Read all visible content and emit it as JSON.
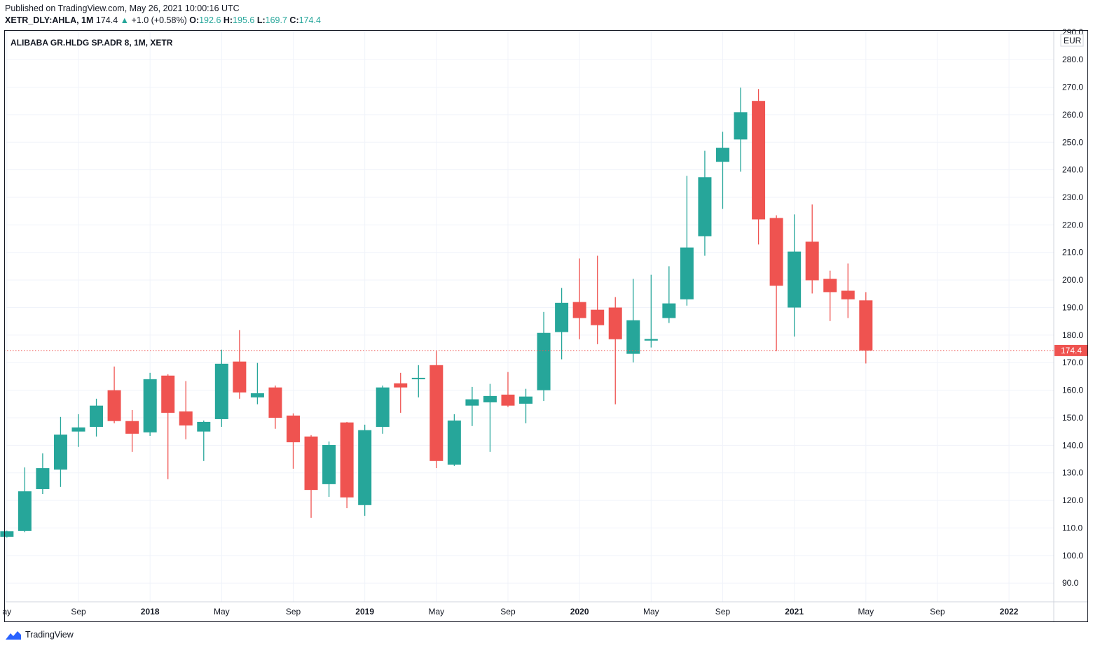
{
  "header": {
    "published": "Published on TradingView.com, May 26, 2021 10:00:16 UTC",
    "symbol": "XETR_DLY:AHLA, 1M",
    "last": "174.4",
    "change": "+1.0 (+0.58%)",
    "o_label": "O:",
    "o": "192.6",
    "h_label": "H:",
    "h": "195.6",
    "l_label": "L:",
    "l": "169.7",
    "c_label": "C:",
    "c": "174.4"
  },
  "footer": {
    "brand": "TradingView"
  },
  "colors": {
    "up": "#26a69a",
    "down": "#ef5350",
    "grid": "#f0f3fa",
    "text": "#131722"
  },
  "chart_data": {
    "type": "candlestick",
    "title": "ALIBABA GR.HLDG SP.ADR 8, 1M, XETR",
    "currency": "EUR",
    "last_price_label": "174.4",
    "last_price": 174.4,
    "ylim": [
      83.2,
      290.7
    ],
    "y_ticks": [
      90,
      100,
      110,
      120,
      130,
      140,
      150,
      160,
      170,
      180,
      190,
      200,
      210,
      220,
      230,
      240,
      250,
      260,
      270,
      280,
      290
    ],
    "x_ticks": [
      {
        "i": 0,
        "label": "ay"
      },
      {
        "i": 4,
        "label": "Sep"
      },
      {
        "i": 8,
        "label": "2018"
      },
      {
        "i": 12,
        "label": "May"
      },
      {
        "i": 16,
        "label": "Sep"
      },
      {
        "i": 20,
        "label": "2019"
      },
      {
        "i": 24,
        "label": "May"
      },
      {
        "i": 28,
        "label": "Sep"
      },
      {
        "i": 32,
        "label": "2020"
      },
      {
        "i": 36,
        "label": "May"
      },
      {
        "i": 40,
        "label": "Sep"
      },
      {
        "i": 44,
        "label": "2021"
      },
      {
        "i": 48,
        "label": "May"
      },
      {
        "i": 52,
        "label": "Sep"
      },
      {
        "i": 56,
        "label": "2022"
      }
    ],
    "x_range_months": [
      -0.15,
      58.5
    ],
    "grid": true,
    "candles": [
      {
        "d": "2017-05",
        "o": 106.8,
        "h": 109.0,
        "l": 106.5,
        "c": 108.8
      },
      {
        "d": "2017-06",
        "o": 108.9,
        "h": 132.0,
        "l": 108.5,
        "c": 123.3
      },
      {
        "d": "2017-07",
        "o": 124.1,
        "h": 137.1,
        "l": 122.3,
        "c": 131.7
      },
      {
        "d": "2017-08",
        "o": 131.2,
        "h": 150.3,
        "l": 124.9,
        "c": 143.9
      },
      {
        "d": "2017-09",
        "o": 145.0,
        "h": 151.3,
        "l": 139.4,
        "c": 146.5
      },
      {
        "d": "2017-10",
        "o": 146.7,
        "h": 156.9,
        "l": 143.2,
        "c": 154.4
      },
      {
        "d": "2017-11",
        "o": 160.0,
        "h": 168.6,
        "l": 148.0,
        "c": 148.8
      },
      {
        "d": "2017-12",
        "o": 148.8,
        "h": 152.8,
        "l": 137.6,
        "c": 144.2
      },
      {
        "d": "2018-01",
        "o": 144.7,
        "h": 166.3,
        "l": 143.4,
        "c": 164.0
      },
      {
        "d": "2018-02",
        "o": 165.3,
        "h": 165.8,
        "l": 127.7,
        "c": 151.8
      },
      {
        "d": "2018-03",
        "o": 152.3,
        "h": 163.3,
        "l": 142.2,
        "c": 147.2
      },
      {
        "d": "2018-04",
        "o": 145.0,
        "h": 149.0,
        "l": 134.3,
        "c": 148.5
      },
      {
        "d": "2018-05",
        "o": 149.5,
        "h": 174.7,
        "l": 146.7,
        "c": 169.6
      },
      {
        "d": "2018-06",
        "o": 170.4,
        "h": 181.8,
        "l": 156.9,
        "c": 159.2
      },
      {
        "d": "2018-07",
        "o": 157.4,
        "h": 169.9,
        "l": 154.9,
        "c": 158.9
      },
      {
        "d": "2018-08",
        "o": 161.0,
        "h": 161.7,
        "l": 146.0,
        "c": 150.0
      },
      {
        "d": "2018-09",
        "o": 150.8,
        "h": 151.6,
        "l": 131.5,
        "c": 141.1
      },
      {
        "d": "2018-10",
        "o": 143.2,
        "h": 143.7,
        "l": 113.7,
        "c": 123.8
      },
      {
        "d": "2018-11",
        "o": 125.9,
        "h": 141.4,
        "l": 121.3,
        "c": 140.1
      },
      {
        "d": "2018-12",
        "o": 148.3,
        "h": 148.5,
        "l": 117.2,
        "c": 121.1
      },
      {
        "d": "2019-01",
        "o": 118.3,
        "h": 147.5,
        "l": 114.4,
        "c": 145.5
      },
      {
        "d": "2019-02",
        "o": 146.7,
        "h": 161.7,
        "l": 144.2,
        "c": 161.0
      },
      {
        "d": "2019-03",
        "o": 162.5,
        "h": 166.3,
        "l": 151.8,
        "c": 161.0
      },
      {
        "d": "2019-04",
        "o": 164.0,
        "h": 169.1,
        "l": 157.4,
        "c": 164.5
      },
      {
        "d": "2019-05",
        "o": 169.1,
        "h": 174.2,
        "l": 131.7,
        "c": 134.3
      },
      {
        "d": "2019-06",
        "o": 133.0,
        "h": 151.3,
        "l": 132.5,
        "c": 149.0
      },
      {
        "d": "2019-07",
        "o": 154.4,
        "h": 161.2,
        "l": 147.0,
        "c": 156.7
      },
      {
        "d": "2019-08",
        "o": 155.6,
        "h": 162.3,
        "l": 137.6,
        "c": 157.9
      },
      {
        "d": "2019-09",
        "o": 158.4,
        "h": 166.6,
        "l": 153.9,
        "c": 154.4
      },
      {
        "d": "2019-10",
        "o": 155.1,
        "h": 160.5,
        "l": 148.0,
        "c": 157.7
      },
      {
        "d": "2019-11",
        "o": 160.0,
        "h": 188.4,
        "l": 156.1,
        "c": 180.8
      },
      {
        "d": "2019-12",
        "o": 181.1,
        "h": 197.1,
        "l": 171.2,
        "c": 191.7
      },
      {
        "d": "2020-01",
        "o": 192.0,
        "h": 207.8,
        "l": 178.5,
        "c": 186.2
      },
      {
        "d": "2020-02",
        "o": 189.2,
        "h": 208.8,
        "l": 176.7,
        "c": 183.6
      },
      {
        "d": "2020-03",
        "o": 190.0,
        "h": 193.8,
        "l": 154.9,
        "c": 178.5
      },
      {
        "d": "2020-04",
        "o": 173.2,
        "h": 200.4,
        "l": 170.1,
        "c": 185.4
      },
      {
        "d": "2020-05",
        "o": 178.0,
        "h": 201.9,
        "l": 175.5,
        "c": 178.6
      },
      {
        "d": "2020-06",
        "o": 186.2,
        "h": 205.0,
        "l": 184.4,
        "c": 191.5
      },
      {
        "d": "2020-07",
        "o": 193.0,
        "h": 237.8,
        "l": 190.7,
        "c": 211.8
      },
      {
        "d": "2020-08",
        "o": 215.9,
        "h": 246.9,
        "l": 208.8,
        "c": 237.3
      },
      {
        "d": "2020-09",
        "o": 242.9,
        "h": 253.8,
        "l": 225.8,
        "c": 248.0
      },
      {
        "d": "2020-10",
        "o": 251.0,
        "h": 269.8,
        "l": 239.3,
        "c": 260.9
      },
      {
        "d": "2020-11",
        "o": 265.0,
        "h": 269.3,
        "l": 212.9,
        "c": 222.0
      },
      {
        "d": "2020-12",
        "o": 222.5,
        "h": 223.5,
        "l": 174.2,
        "c": 197.9
      },
      {
        "d": "2021-01",
        "o": 190.0,
        "h": 223.8,
        "l": 179.5,
        "c": 210.3
      },
      {
        "d": "2021-02",
        "o": 213.9,
        "h": 227.4,
        "l": 195.1,
        "c": 199.9
      },
      {
        "d": "2021-03",
        "o": 200.4,
        "h": 203.4,
        "l": 185.1,
        "c": 195.6
      },
      {
        "d": "2021-04",
        "o": 196.1,
        "h": 206.0,
        "l": 186.2,
        "c": 193.0
      },
      {
        "d": "2021-05",
        "o": 192.6,
        "h": 195.6,
        "l": 169.7,
        "c": 174.4
      }
    ]
  }
}
